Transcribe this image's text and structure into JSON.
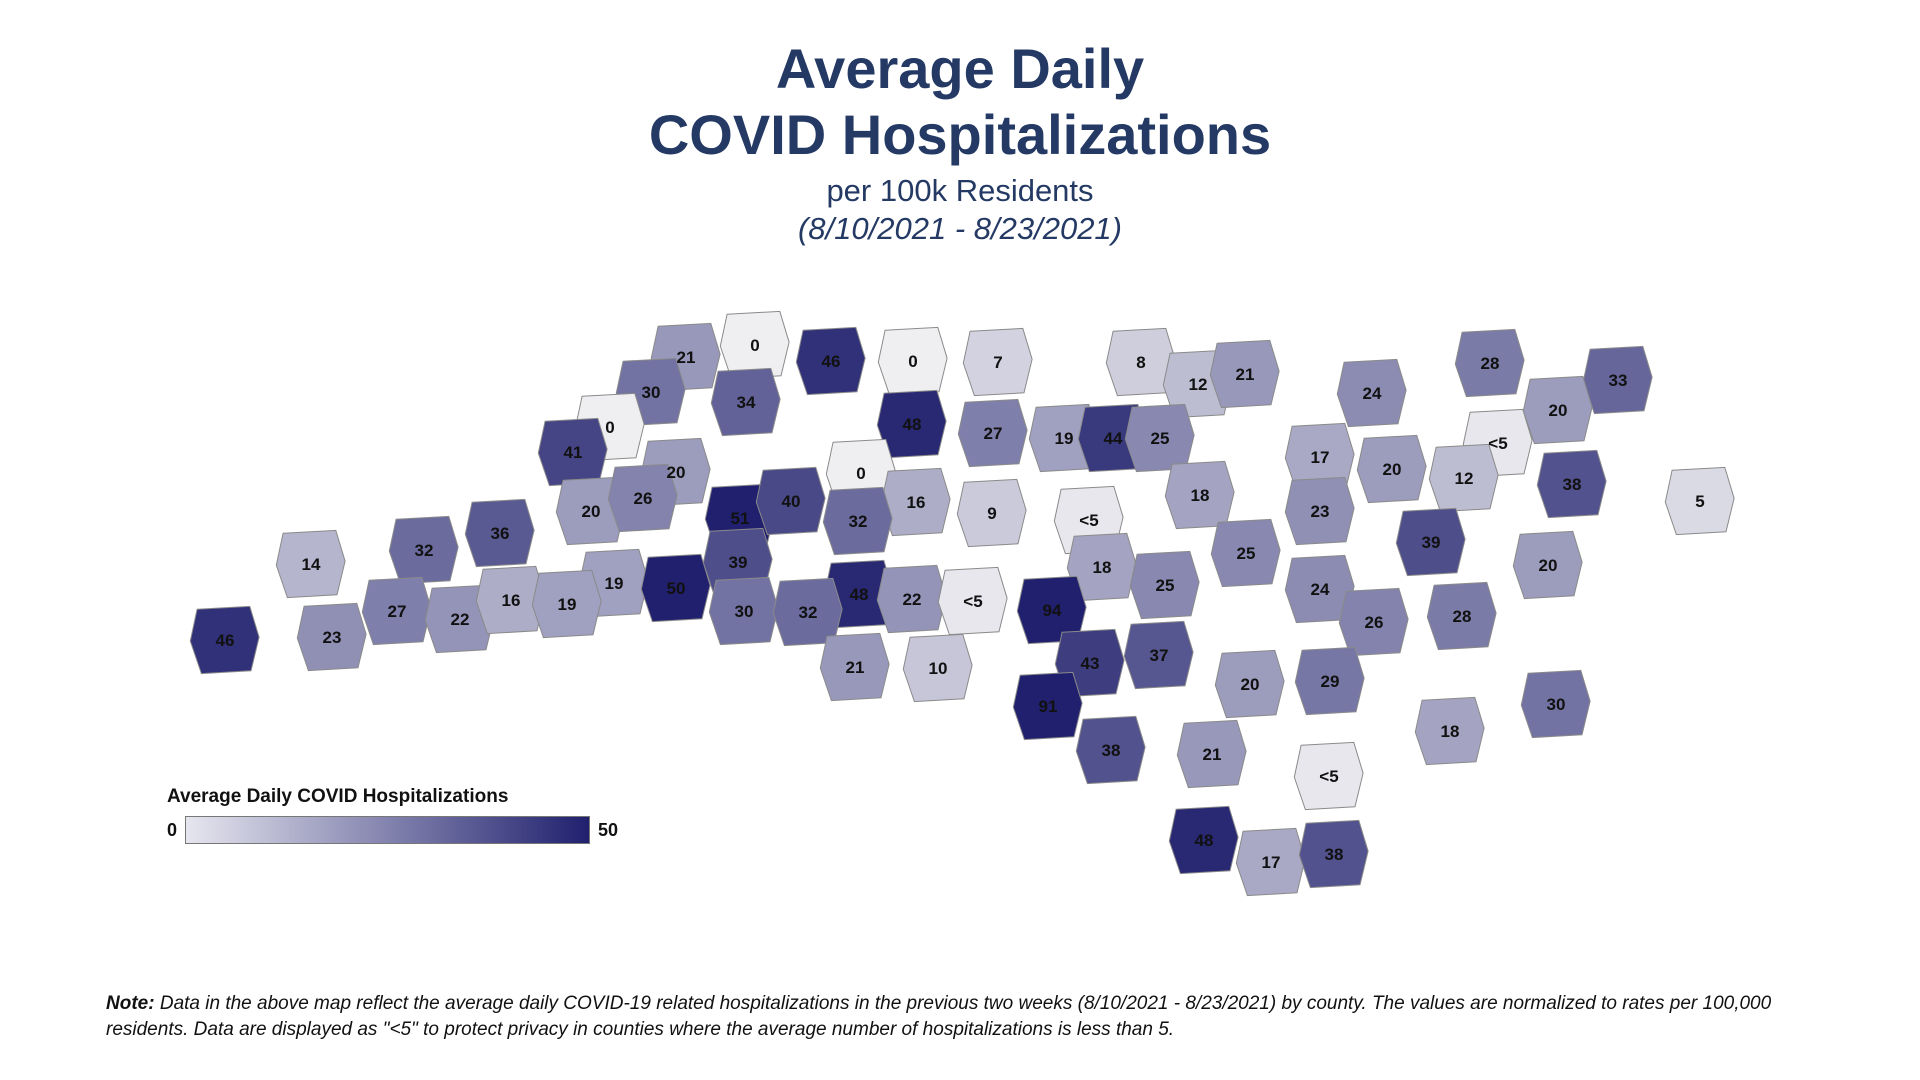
{
  "header": {
    "title_line1": "Average Daily",
    "title_line2": "COVID Hospitalizations",
    "subtitle": "per 100k Residents",
    "date_range": "(8/10/2021 - 8/23/2021)"
  },
  "legend": {
    "title": "Average Daily COVID Hospitalizations",
    "min_label": "0",
    "max_label": "50",
    "color_low": "#e6e6ef",
    "color_high": "#20206e"
  },
  "note": {
    "label": "Note:",
    "text": " Data in the above map reflect the average daily COVID-19 related hospitalizations in the previous two weeks (8/10/2021 - 8/23/2021) by county. The values are normalized to rates per 100,000 residents. Data are displayed as \"<5\" to protect privacy in counties where the average number of hospitalizations is less than 5."
  },
  "map_data": {
    "region": "North Carolina",
    "unit": "per 100k Residents",
    "scale": {
      "min": 0,
      "max": 50
    },
    "counties": [
      {
        "value": 21,
        "label": "21"
      },
      {
        "value": 0,
        "label": "0"
      },
      {
        "value": 46,
        "label": "46"
      },
      {
        "value": 0,
        "label": "0"
      },
      {
        "value": 7,
        "label": "7"
      },
      {
        "value": 8,
        "label": "8"
      },
      {
        "value": 12,
        "label": "12"
      },
      {
        "value": 21,
        "label": "21"
      },
      {
        "value": 24,
        "label": "24"
      },
      {
        "value": 28,
        "label": "28"
      },
      {
        "value": 33,
        "label": "33"
      },
      {
        "value": 20,
        "label": "20"
      },
      {
        "value": 2,
        "label": "<5"
      },
      {
        "value": 30,
        "label": "30"
      },
      {
        "value": 34,
        "label": "34"
      },
      {
        "value": 0,
        "label": "0"
      },
      {
        "value": 41,
        "label": "41"
      },
      {
        "value": 48,
        "label": "48"
      },
      {
        "value": 27,
        "label": "27"
      },
      {
        "value": 19,
        "label": "19"
      },
      {
        "value": 44,
        "label": "44"
      },
      {
        "value": 25,
        "label": "25"
      },
      {
        "value": 17,
        "label": "17"
      },
      {
        "value": 20,
        "label": "20"
      },
      {
        "value": 12,
        "label": "12"
      },
      {
        "value": 38,
        "label": "38"
      },
      {
        "value": 5,
        "label": "5"
      },
      {
        "value": 20,
        "label": "20"
      },
      {
        "value": 0,
        "label": "0"
      },
      {
        "value": 16,
        "label": "16"
      },
      {
        "value": 9,
        "label": "9"
      },
      {
        "value": 2,
        "label": "<5"
      },
      {
        "value": 18,
        "label": "18"
      },
      {
        "value": 23,
        "label": "23"
      },
      {
        "value": 20,
        "label": "20"
      },
      {
        "value": 26,
        "label": "26"
      },
      {
        "value": 51,
        "label": "51"
      },
      {
        "value": 40,
        "label": "40"
      },
      {
        "value": 32,
        "label": "32"
      },
      {
        "value": 25,
        "label": "25"
      },
      {
        "value": 39,
        "label": "39"
      },
      {
        "value": 14,
        "label": "14"
      },
      {
        "value": 32,
        "label": "32"
      },
      {
        "value": 36,
        "label": "36"
      },
      {
        "value": 39,
        "label": "39"
      },
      {
        "value": 18,
        "label": "18"
      },
      {
        "value": 25,
        "label": "25"
      },
      {
        "value": 24,
        "label": "24"
      },
      {
        "value": 20,
        "label": "20"
      },
      {
        "value": 19,
        "label": "19"
      },
      {
        "value": 50,
        "label": "50"
      },
      {
        "value": 48,
        "label": "48"
      },
      {
        "value": 22,
        "label": "22"
      },
      {
        "value": 2,
        "label": "<5"
      },
      {
        "value": 94,
        "label": "94"
      },
      {
        "value": 26,
        "label": "26"
      },
      {
        "value": 28,
        "label": "28"
      },
      {
        "value": 46,
        "label": "46"
      },
      {
        "value": 23,
        "label": "23"
      },
      {
        "value": 27,
        "label": "27"
      },
      {
        "value": 22,
        "label": "22"
      },
      {
        "value": 16,
        "label": "16"
      },
      {
        "value": 19,
        "label": "19"
      },
      {
        "value": 30,
        "label": "30"
      },
      {
        "value": 32,
        "label": "32"
      },
      {
        "value": 43,
        "label": "43"
      },
      {
        "value": 37,
        "label": "37"
      },
      {
        "value": 21,
        "label": "21"
      },
      {
        "value": 10,
        "label": "10"
      },
      {
        "value": 20,
        "label": "20"
      },
      {
        "value": 29,
        "label": "29"
      },
      {
        "value": 91,
        "label": "91"
      },
      {
        "value": 30,
        "label": "30"
      },
      {
        "value": 18,
        "label": "18"
      },
      {
        "value": 38,
        "label": "38"
      },
      {
        "value": 21,
        "label": "21"
      },
      {
        "value": 2,
        "label": "<5"
      },
      {
        "value": 48,
        "label": "48"
      },
      {
        "value": 17,
        "label": "17"
      },
      {
        "value": 38,
        "label": "38"
      }
    ]
  }
}
